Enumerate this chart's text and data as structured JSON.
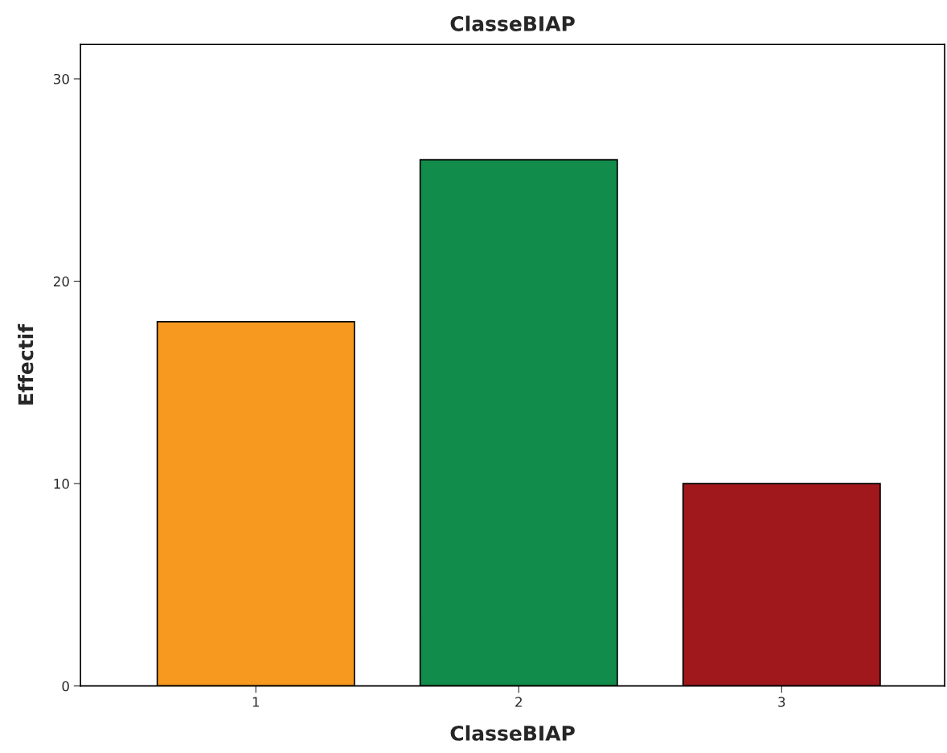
{
  "chart_data": {
    "type": "bar",
    "title": "ClasseBIAP",
    "xlabel": "ClasseBIAP",
    "ylabel": "Effectif",
    "categories": [
      "1",
      "2",
      "3"
    ],
    "values": [
      18,
      26,
      10
    ],
    "colors": [
      "#f7991f",
      "#118c4a",
      "#a0181c"
    ],
    "ylim": [
      0,
      31.7
    ],
    "yticks": [
      0,
      10,
      20,
      30
    ],
    "grid": false,
    "legend": false
  }
}
